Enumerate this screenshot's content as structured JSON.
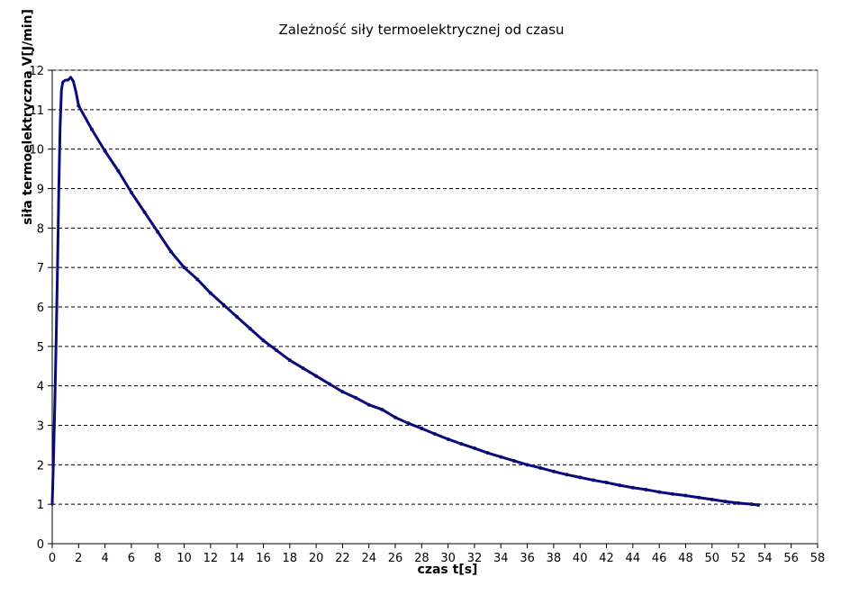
{
  "chart_data": {
    "type": "line",
    "title": "Zależność siły termoelektrycznej od czasu",
    "xlabel": "czas t[s]",
    "ylabel": "siła termoelektryczna V[J/min]",
    "xlim": [
      0,
      58
    ],
    "ylim": [
      0,
      12
    ],
    "x_ticks": [
      "0",
      "2",
      "4",
      "6",
      "8",
      "10",
      "12",
      "14",
      "16",
      "18",
      "20",
      "22",
      "24",
      "26",
      "28",
      "30",
      "32",
      "34",
      "36",
      "38",
      "40",
      "42",
      "44",
      "46",
      "48",
      "50",
      "52",
      "54",
      "56",
      "58"
    ],
    "y_ticks": [
      "0",
      "1",
      "2",
      "3",
      "4",
      "5",
      "6",
      "7",
      "8",
      "9",
      "10",
      "11",
      "12"
    ],
    "grid": "horizontal-dashed",
    "legend": "none",
    "colors": {
      "line": "#0a0a78",
      "plot_border": "#808080",
      "grid": "#000000"
    },
    "series": [
      {
        "values": [
          [
            0.0,
            1.0
          ],
          [
            0.1,
            2.2
          ],
          [
            0.2,
            3.6
          ],
          [
            0.3,
            5.2
          ],
          [
            0.4,
            7.0
          ],
          [
            0.5,
            9.0
          ],
          [
            0.6,
            10.6
          ],
          [
            0.7,
            11.5
          ],
          [
            0.8,
            11.7
          ],
          [
            1.0,
            11.75
          ],
          [
            1.2,
            11.75
          ],
          [
            1.4,
            11.82
          ],
          [
            1.6,
            11.72
          ],
          [
            1.8,
            11.45
          ],
          [
            2.0,
            11.1
          ],
          [
            3.0,
            10.5
          ],
          [
            4.0,
            9.95
          ],
          [
            5.0,
            9.45
          ],
          [
            6.0,
            8.9
          ],
          [
            7.0,
            8.4
          ],
          [
            8.0,
            7.9
          ],
          [
            9.0,
            7.4
          ],
          [
            10.0,
            7.0
          ],
          [
            11.0,
            6.7
          ],
          [
            12.0,
            6.35
          ],
          [
            13.0,
            6.05
          ],
          [
            14.0,
            5.75
          ],
          [
            15.0,
            5.45
          ],
          [
            16.0,
            5.15
          ],
          [
            17.0,
            4.9
          ],
          [
            18.0,
            4.65
          ],
          [
            19.0,
            4.45
          ],
          [
            20.0,
            4.25
          ],
          [
            21.0,
            4.05
          ],
          [
            22.0,
            3.85
          ],
          [
            23.0,
            3.7
          ],
          [
            24.0,
            3.52
          ],
          [
            25.0,
            3.4
          ],
          [
            26.0,
            3.2
          ],
          [
            27.0,
            3.05
          ],
          [
            28.0,
            2.92
          ],
          [
            29.0,
            2.78
          ],
          [
            30.0,
            2.65
          ],
          [
            31.0,
            2.53
          ],
          [
            32.0,
            2.42
          ],
          [
            33.0,
            2.3
          ],
          [
            34.0,
            2.2
          ],
          [
            35.0,
            2.1
          ],
          [
            36.0,
            2.0
          ],
          [
            37.0,
            1.92
          ],
          [
            38.0,
            1.83
          ],
          [
            39.0,
            1.75
          ],
          [
            40.0,
            1.68
          ],
          [
            41.0,
            1.61
          ],
          [
            42.0,
            1.55
          ],
          [
            43.0,
            1.48
          ],
          [
            44.0,
            1.42
          ],
          [
            45.0,
            1.37
          ],
          [
            46.0,
            1.31
          ],
          [
            47.0,
            1.26
          ],
          [
            48.0,
            1.22
          ],
          [
            49.0,
            1.17
          ],
          [
            50.0,
            1.12
          ],
          [
            51.0,
            1.07
          ],
          [
            52.0,
            1.03
          ],
          [
            53.0,
            1.0
          ],
          [
            53.5,
            0.98
          ]
        ]
      }
    ]
  }
}
